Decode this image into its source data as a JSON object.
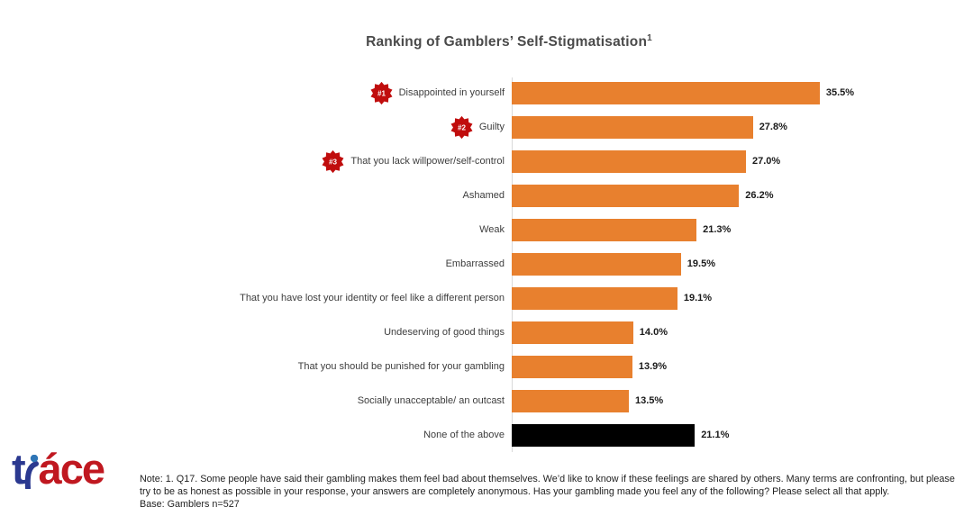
{
  "chart_data": {
    "type": "bar",
    "orientation": "horizontal",
    "title": "Ranking of Gamblers’ Self-Stigmatisation",
    "title_superscript": "1",
    "xlabel": "",
    "ylabel": "",
    "xlim": [
      0,
      37
    ],
    "grid": false,
    "legend": "none",
    "value_format": "percent, one decimal, shown as data labels right of bars",
    "colors": {
      "bar_orange": "#E8802E",
      "bar_black": "#000000",
      "rank_badge_red": "#C00D0D",
      "badge_text": "#ffffff"
    },
    "items": [
      {
        "label": "Disappointed in yourself",
        "value": 35.5,
        "value_label": "35.5%",
        "rank": "#1",
        "color": "#E8802E"
      },
      {
        "label": "Guilty",
        "value": 27.8,
        "value_label": "27.8%",
        "rank": "#2",
        "color": "#E8802E"
      },
      {
        "label": "That you lack willpower/self-control",
        "value": 27.0,
        "value_label": "27.0%",
        "rank": "#3",
        "color": "#E8802E"
      },
      {
        "label": "Ashamed",
        "value": 26.2,
        "value_label": "26.2%",
        "color": "#E8802E"
      },
      {
        "label": "Weak",
        "value": 21.3,
        "value_label": "21.3%",
        "color": "#E8802E"
      },
      {
        "label": "Embarrassed",
        "value": 19.5,
        "value_label": "19.5%",
        "color": "#E8802E"
      },
      {
        "label": "That you have lost your identity or feel like a different person",
        "value": 19.1,
        "value_label": "19.1%",
        "color": "#E8802E"
      },
      {
        "label": "Undeserving of good things",
        "value": 14.0,
        "value_label": "14.0%",
        "color": "#E8802E"
      },
      {
        "label": "That you should be punished for your gambling",
        "value": 13.9,
        "value_label": "13.9%",
        "color": "#E8802E"
      },
      {
        "label": "Socially unacceptable/ an outcast",
        "value": 13.5,
        "value_label": "13.5%",
        "color": "#E8802E"
      },
      {
        "label": "None of the above",
        "value": 21.1,
        "value_label": "21.1%",
        "color": "#000000"
      }
    ]
  },
  "footer": {
    "note": "Note: 1. Q17. Some people have said their gambling makes them feel bad about themselves. We’d like to know if these feelings are shared by others. Many terms are confronting, but please try to be as honest as possible in your response, your answers are completely anonymous. Has your gambling made you feel any of the following? Please select all that apply.",
    "base": "Base: Gamblers n=527"
  },
  "logo": {
    "brand": "trace",
    "part_t": "t",
    "part_rest": "áce"
  }
}
